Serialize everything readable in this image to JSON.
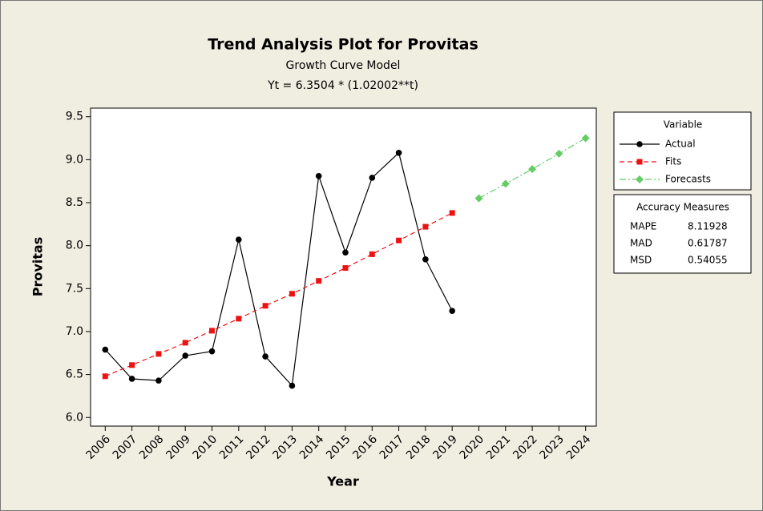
{
  "chart_data": {
    "type": "line",
    "title": "Trend Analysis Plot for Provitas",
    "subtitle": "Growth Curve Model",
    "equation": "Yt = 6.3504 * (1.02002**t)",
    "x_label": "Year",
    "y_label": "Provitas",
    "x": [
      2006,
      2007,
      2008,
      2009,
      2010,
      2011,
      2012,
      2013,
      2014,
      2015,
      2016,
      2017,
      2018,
      2019,
      2020,
      2021,
      2022,
      2023,
      2024
    ],
    "xlim": [
      2005.45,
      2024.4
    ],
    "xticks": [
      2006,
      2007,
      2008,
      2009,
      2010,
      2011,
      2012,
      2013,
      2014,
      2015,
      2016,
      2017,
      2018,
      2019,
      2020,
      2021,
      2022,
      2023,
      2024
    ],
    "ylim": [
      5.9,
      9.6
    ],
    "yticks": [
      {
        "value": 6,
        "label": "6.0"
      },
      {
        "value": 6.5,
        "label": "6.5"
      },
      {
        "value": 7,
        "label": "7.0"
      },
      {
        "value": 7.5,
        "label": "7.5"
      },
      {
        "value": 8,
        "label": "8.0"
      },
      {
        "value": 8.5,
        "label": "8.5"
      },
      {
        "value": 9,
        "label": "9.0"
      },
      {
        "value": 9.5,
        "label": "9.5"
      }
    ],
    "legend_title": "Variable",
    "series": [
      {
        "name": "Actual",
        "color": "#000000",
        "marker": "circle",
        "dash": "solid",
        "values": [
          6.79,
          6.45,
          6.43,
          6.72,
          6.77,
          8.07,
          6.71,
          6.37,
          8.81,
          7.92,
          8.79,
          9.08,
          7.84,
          7.24,
          null,
          null,
          null,
          null,
          null
        ]
      },
      {
        "name": "Fits",
        "color": "#ee1111",
        "marker": "square",
        "dash": "dashed",
        "values": [
          6.48,
          6.61,
          6.74,
          6.87,
          7.01,
          7.15,
          7.3,
          7.44,
          7.59,
          7.74,
          7.9,
          8.06,
          8.22,
          8.38,
          null,
          null,
          null,
          null,
          null
        ]
      },
      {
        "name": "Forecasts",
        "color": "#66cc66",
        "marker": "diamond",
        "dash": "dashdot",
        "values": [
          null,
          null,
          null,
          null,
          null,
          null,
          null,
          null,
          null,
          null,
          null,
          null,
          null,
          null,
          8.55,
          8.72,
          8.89,
          9.07,
          9.25
        ]
      }
    ],
    "accuracy_measures": {
      "title": "Accuracy Measures",
      "rows": [
        {
          "name": "MAPE",
          "value": 8.11928
        },
        {
          "name": "MAD",
          "value": 0.61787
        },
        {
          "name": "MSD",
          "value": 0.54055
        }
      ]
    }
  }
}
